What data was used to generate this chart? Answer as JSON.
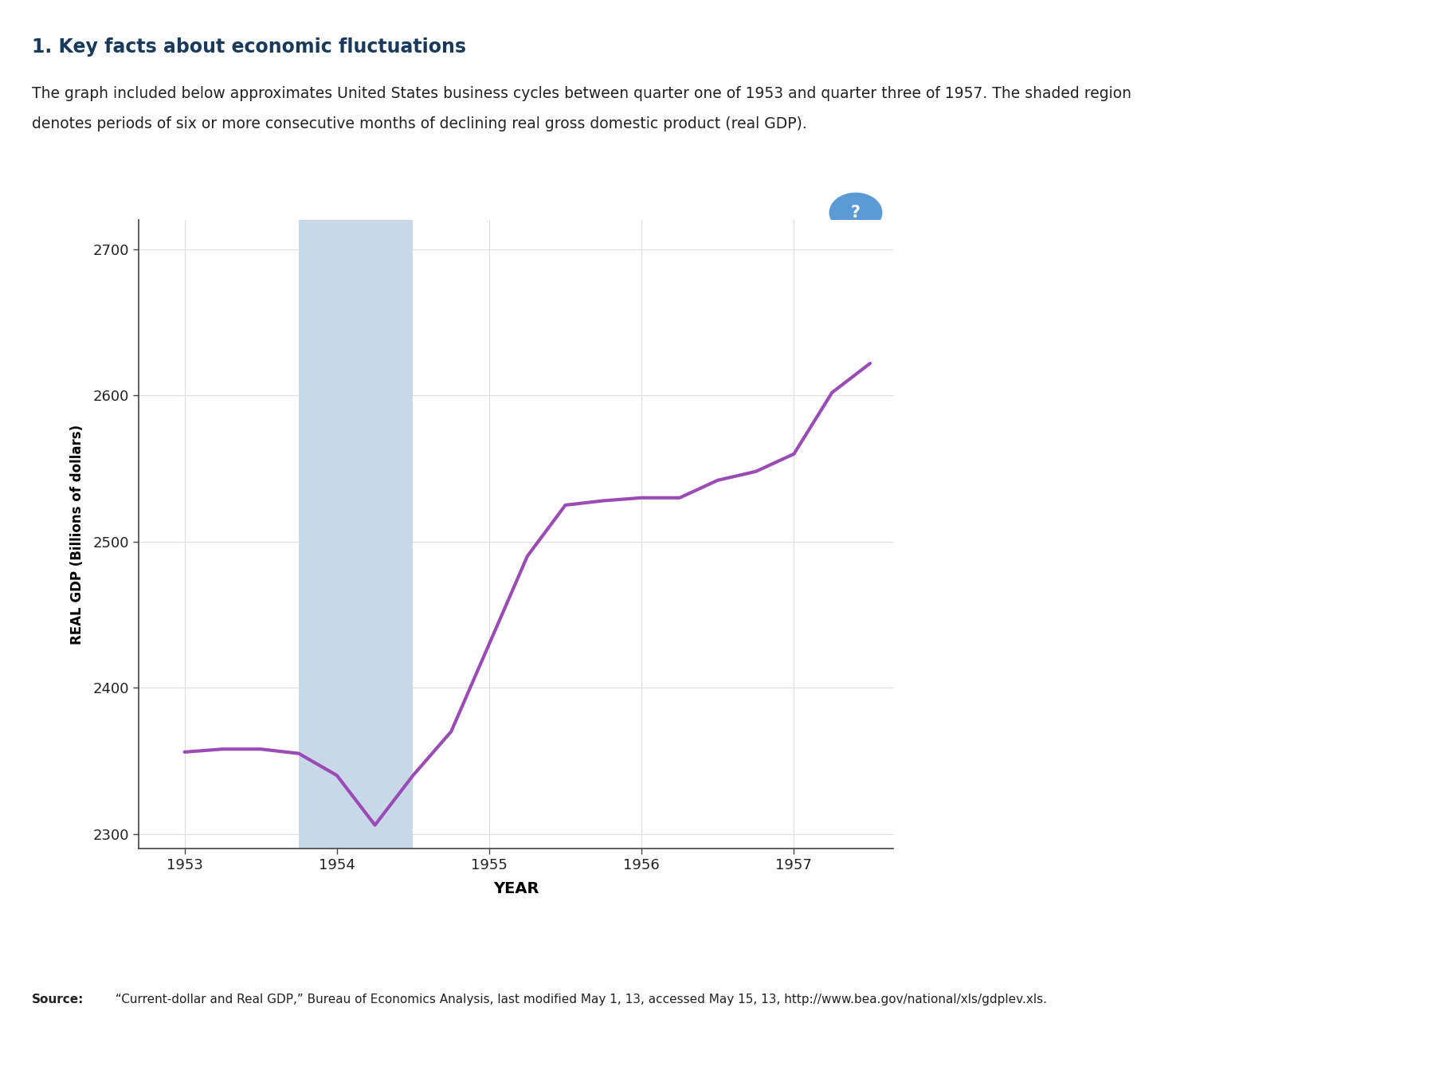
{
  "title": "1. Key facts about economic fluctuations",
  "description_line1": "The graph included below approximates United States business cycles between quarter one of 1953 and quarter three of 1957. The shaded region",
  "description_line2": "denotes periods of six or more consecutive months of declining real gross domestic product (real GDP).",
  "source_bold": "Source:",
  "source_rest": " “Current-dollar and Real GDP,” Bureau of Economics Analysis, last modified May 1, 13, accessed May 15, 13, http://www.bea.gov/national/xls/gdplev.xls.",
  "x_values": [
    1953.0,
    1953.25,
    1953.5,
    1953.75,
    1954.0,
    1954.25,
    1954.5,
    1954.75,
    1955.0,
    1955.25,
    1955.5,
    1955.75,
    1956.0,
    1956.25,
    1956.5,
    1956.75,
    1957.0,
    1957.25,
    1957.5
  ],
  "y_values": [
    2356,
    2358,
    2358,
    2355,
    2340,
    2306,
    2340,
    2370,
    2430,
    2490,
    2525,
    2528,
    2530,
    2530,
    2542,
    2548,
    2560,
    2602,
    2622
  ],
  "recession_start": 1953.75,
  "recession_end": 1954.5,
  "line_color": "#9b4bb5",
  "shade_color": "#c8d8e8",
  "xlabel": "YEAR",
  "ylabel": "REAL GDP (Billions of dollars)",
  "ylim": [
    2290,
    2720
  ],
  "yticks": [
    2300,
    2400,
    2500,
    2600,
    2700
  ],
  "xticks": [
    1953,
    1954,
    1955,
    1956,
    1957
  ],
  "xlim_left": 1952.7,
  "xlim_right": 1957.65,
  "background_color": "#ffffff",
  "chart_bg_color": "#ffffff",
  "title_color": "#1a3a5c",
  "text_color": "#222222",
  "divider_color": "#c8b87a",
  "grid_color": "#dddddd",
  "box_border_color": "#bbbbbb",
  "question_color": "#5b9bd5"
}
